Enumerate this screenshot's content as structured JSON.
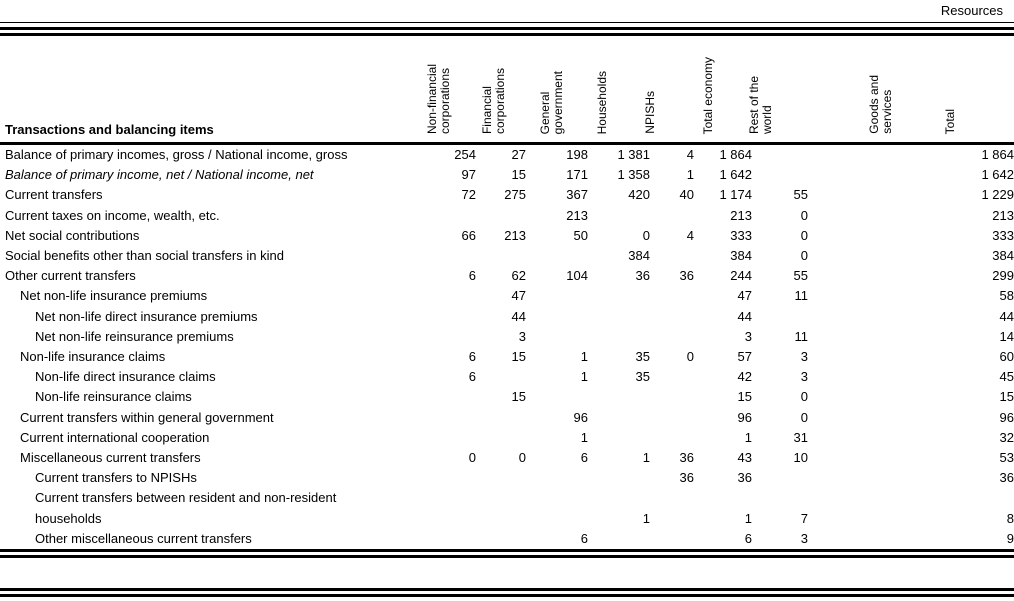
{
  "page": {
    "section_label": "Resources"
  },
  "colors": {
    "text": "#000000",
    "background": "#ffffff",
    "rules": "#000000"
  },
  "table": {
    "row_header_title": "Transactions and balancing items",
    "columns": [
      {
        "label": "Non-financial\ncorporations"
      },
      {
        "label": "Financial\ncorporations"
      },
      {
        "label": "General\ngovernment"
      },
      {
        "label": "Households"
      },
      {
        "label": "NPISHs"
      },
      {
        "label": "Total economy"
      },
      {
        "label": "Rest of the\nworld"
      },
      {
        "label": "Goods and\nservices"
      },
      {
        "label": "Total"
      }
    ],
    "rows": [
      {
        "label": "Balance of primary incomes, gross / National income, gross",
        "indent": 0,
        "italic": false,
        "values": [
          "254",
          "27",
          "198",
          "1 381",
          "4",
          "1 864",
          "",
          "",
          "1 864"
        ]
      },
      {
        "label": "Balance of primary income, net / National income, net",
        "indent": 0,
        "italic": true,
        "values": [
          "97",
          "15",
          "171",
          "1 358",
          "1",
          "1 642",
          "",
          "",
          "1 642"
        ]
      },
      {
        "label": "Current transfers",
        "indent": 0,
        "italic": false,
        "values": [
          "72",
          "275",
          "367",
          "420",
          "40",
          "1 174",
          "55",
          "",
          "1 229"
        ]
      },
      {
        "label": "Current taxes on income, wealth, etc.",
        "indent": 0,
        "italic": false,
        "values": [
          "",
          "",
          "213",
          "",
          "",
          "213",
          "0",
          "",
          "213"
        ]
      },
      {
        "label": "Net social contributions",
        "indent": 0,
        "italic": false,
        "values": [
          "66",
          "213",
          "50",
          "0",
          "4",
          "333",
          "0",
          "",
          "333"
        ]
      },
      {
        "label": "Social benefits other than social transfers in kind",
        "indent": 0,
        "italic": false,
        "values": [
          "",
          "",
          "",
          "384",
          "",
          "384",
          "0",
          "",
          "384"
        ]
      },
      {
        "label": "Other current transfers",
        "indent": 0,
        "italic": false,
        "values": [
          "6",
          "62",
          "104",
          "36",
          "36",
          "244",
          "55",
          "",
          "299"
        ]
      },
      {
        "label": "Net non-life insurance premiums",
        "indent": 1,
        "italic": false,
        "values": [
          "",
          "47",
          "",
          "",
          "",
          "47",
          "11",
          "",
          "58"
        ]
      },
      {
        "label": "Net non-life direct insurance premiums",
        "indent": 2,
        "italic": false,
        "values": [
          "",
          "44",
          "",
          "",
          "",
          "44",
          "",
          "",
          "44"
        ]
      },
      {
        "label": "Net non-life reinsurance premiums",
        "indent": 2,
        "italic": false,
        "values": [
          "",
          "3",
          "",
          "",
          "",
          "3",
          "11",
          "",
          "14"
        ]
      },
      {
        "label": "Non-life insurance claims",
        "indent": 1,
        "italic": false,
        "values": [
          "6",
          "15",
          "1",
          "35",
          "0",
          "57",
          "3",
          "",
          "60"
        ]
      },
      {
        "label": "Non-life direct insurance claims",
        "indent": 2,
        "italic": false,
        "values": [
          "6",
          "",
          "1",
          "35",
          "",
          "42",
          "3",
          "",
          "45"
        ]
      },
      {
        "label": "Non-life reinsurance claims",
        "indent": 2,
        "italic": false,
        "values": [
          "",
          "15",
          "",
          "",
          "",
          "15",
          "0",
          "",
          "15"
        ]
      },
      {
        "label": "Current transfers within general government",
        "indent": 1,
        "italic": false,
        "values": [
          "",
          "",
          "96",
          "",
          "",
          "96",
          "0",
          "",
          "96"
        ]
      },
      {
        "label": "Current international cooperation",
        "indent": 1,
        "italic": false,
        "values": [
          "",
          "",
          "1",
          "",
          "",
          "1",
          "31",
          "",
          "32"
        ]
      },
      {
        "label": "Miscellaneous current transfers",
        "indent": 1,
        "italic": false,
        "values": [
          "0",
          "0",
          "6",
          "1",
          "36",
          "43",
          "10",
          "",
          "53"
        ]
      },
      {
        "label": "Current transfers to NPISHs",
        "indent": 2,
        "italic": false,
        "values": [
          "",
          "",
          "",
          "",
          "36",
          "36",
          "",
          "",
          "36"
        ]
      },
      {
        "label": "Current transfers between resident and non-resident\nhouseholds",
        "indent": 2,
        "italic": false,
        "values": [
          "",
          "",
          "",
          "1",
          "",
          "1",
          "7",
          "",
          "8"
        ]
      },
      {
        "label": "Other miscellaneous current transfers",
        "indent": 2,
        "italic": false,
        "values": [
          "",
          "",
          "6",
          "",
          "",
          "6",
          "3",
          "",
          "9"
        ]
      }
    ]
  }
}
